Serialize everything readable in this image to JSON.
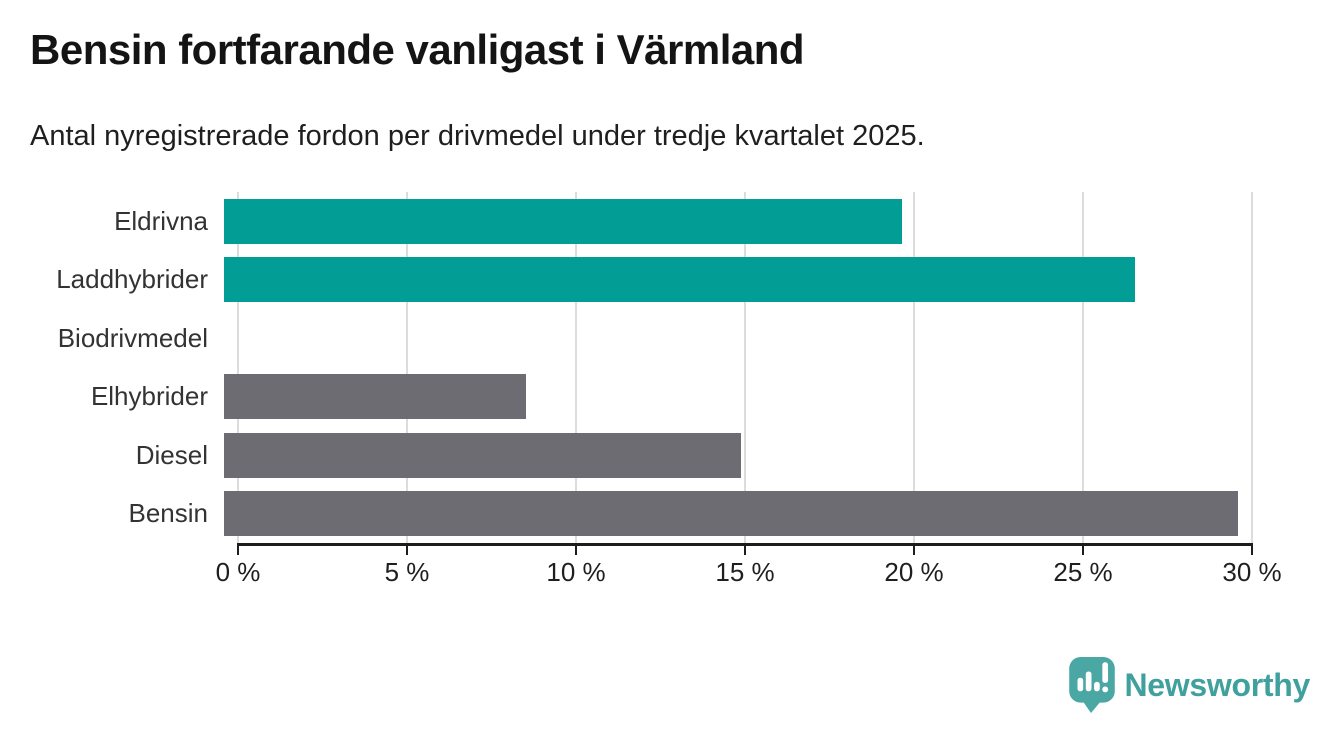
{
  "chart_data": {
    "type": "bar",
    "orientation": "horizontal",
    "title": "Bensin fortfarande vanligast i Värmland",
    "subtitle": "Antal nyregistrerade fordon per drivmedel under tredje kvartalet 2025.",
    "categories": [
      "Eldrivna",
      "Laddhybrider",
      "Biodrivmedel",
      "Elhybrider",
      "Diesel",
      "Bensin"
    ],
    "values": [
      19.8,
      26.6,
      0,
      8.8,
      15.1,
      29.6
    ],
    "bar_colors": [
      "#029e96",
      "#029e96",
      "#6d6c72",
      "#6d6c72",
      "#6d6c72",
      "#6d6c72"
    ],
    "highlight_color": "#029e96",
    "default_color": "#6d6c72",
    "xlim": [
      0,
      30
    ],
    "xticks": [
      0,
      5,
      10,
      15,
      20,
      25,
      30
    ],
    "xtick_labels": [
      "0 %",
      "5 %",
      "10 %",
      "15 %",
      "20 %",
      "25 %",
      "30 %"
    ],
    "xlabel": "",
    "ylabel": "",
    "grid": true,
    "grid_color": "#dcdcdc",
    "axis_color": "#1d1d1d",
    "legend": "none"
  },
  "footer": {
    "brand": "Newsworthy",
    "brand_color": "#3fa09d",
    "logo_icon": "newsworthy-speech-bubble-bar-chart-icon"
  }
}
